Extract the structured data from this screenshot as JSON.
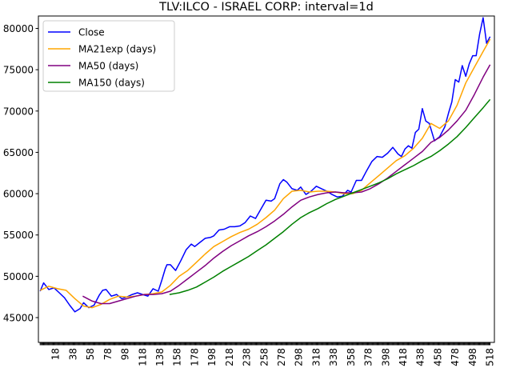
{
  "chart_data": {
    "type": "line",
    "title": "TLV:ILCO - ISRAEL CORP: interval=1d",
    "xlabel": "",
    "ylabel": "",
    "xlim": [
      -2,
      523
    ],
    "ylim": [
      42000,
      81500
    ],
    "yticks": [
      45000,
      50000,
      55000,
      60000,
      65000,
      70000,
      75000,
      80000
    ],
    "ytick_labels": [
      "45000",
      "50000",
      "55000",
      "60000",
      "65000",
      "70000",
      "75000",
      "80000"
    ],
    "xticks": [
      18,
      38,
      58,
      78,
      98,
      118,
      138,
      158,
      178,
      198,
      218,
      238,
      258,
      278,
      298,
      318,
      338,
      358,
      378,
      398,
      418,
      438,
      458,
      478,
      498,
      518
    ],
    "xtick_labels": [
      "18",
      "38",
      "58",
      "78",
      "98",
      "118",
      "138",
      "158",
      "178",
      "198",
      "218",
      "238",
      "258",
      "278",
      "298",
      "318",
      "338",
      "358",
      "378",
      "398",
      "418",
      "438",
      "458",
      "478",
      "498",
      "518"
    ],
    "grid": false,
    "legend": {
      "position": "upper-left"
    },
    "series": [
      {
        "name": "Close",
        "color": "#0000ff",
        "x": [
          0,
          4,
          10,
          16,
          22,
          28,
          34,
          40,
          46,
          50,
          56,
          62,
          68,
          72,
          76,
          82,
          88,
          94,
          100,
          106,
          112,
          118,
          124,
          130,
          136,
          140,
          144,
          146,
          150,
          156,
          162,
          168,
          174,
          178,
          184,
          190,
          196,
          200,
          206,
          212,
          218,
          224,
          230,
          236,
          242,
          248,
          254,
          260,
          266,
          270,
          276,
          280,
          284,
          290,
          296,
          300,
          306,
          312,
          318,
          324,
          330,
          336,
          342,
          348,
          354,
          358,
          364,
          370,
          376,
          382,
          388,
          394,
          400,
          406,
          412,
          416,
          420,
          424,
          428,
          432,
          436,
          440,
          444,
          448,
          454,
          460,
          466,
          470,
          474,
          478,
          482,
          486,
          490,
          494,
          498,
          502,
          506,
          510,
          514,
          518
        ],
        "y": [
          48200,
          49200,
          48400,
          48600,
          48000,
          47400,
          46500,
          45700,
          46100,
          46800,
          46200,
          46500,
          47700,
          48300,
          48400,
          47600,
          47800,
          47300,
          47500,
          47800,
          48000,
          47800,
          47600,
          48500,
          48200,
          49500,
          50900,
          51400,
          51400,
          50700,
          51900,
          53200,
          53900,
          53600,
          54100,
          54600,
          54700,
          54900,
          55600,
          55700,
          56000,
          56000,
          56100,
          56500,
          57300,
          57000,
          58100,
          59200,
          59100,
          59400,
          61200,
          61700,
          61400,
          60600,
          60400,
          60800,
          59900,
          60300,
          60900,
          60600,
          60300,
          59900,
          59600,
          59700,
          60400,
          60200,
          61600,
          61600,
          62800,
          63900,
          64500,
          64400,
          64900,
          65600,
          64800,
          64500,
          65400,
          65800,
          65500,
          67400,
          67800,
          70300,
          68800,
          68500,
          66400,
          66900,
          68100,
          69700,
          71100,
          73800,
          73500,
          75500,
          74200,
          75700,
          76700,
          76700,
          79300,
          81300,
          78200,
          79000
        ]
      },
      {
        "name": "MA21exp (days)",
        "color": "#ffa500",
        "x": [
          0,
          10,
          20,
          30,
          40,
          50,
          60,
          70,
          80,
          90,
          100,
          110,
          120,
          130,
          140,
          150,
          160,
          170,
          180,
          190,
          200,
          210,
          220,
          230,
          240,
          250,
          260,
          270,
          280,
          290,
          300,
          310,
          320,
          330,
          340,
          350,
          360,
          370,
          380,
          390,
          400,
          410,
          420,
          430,
          440,
          450,
          460,
          470,
          480,
          490,
          500,
          510,
          518
        ],
        "y": [
          48300,
          48800,
          48500,
          48300,
          47300,
          46400,
          46200,
          46600,
          47200,
          47600,
          47500,
          47600,
          47800,
          47900,
          48100,
          48900,
          50000,
          50700,
          51700,
          52700,
          53600,
          54200,
          54800,
          55300,
          55700,
          56300,
          57100,
          58000,
          59400,
          60300,
          60400,
          60200,
          60300,
          60300,
          60200,
          60000,
          60000,
          60400,
          61300,
          62200,
          63100,
          64000,
          64600,
          65500,
          66700,
          68500,
          67900,
          68800,
          70700,
          73400,
          75300,
          77200,
          78700
        ]
      },
      {
        "name": "MA50 (days)",
        "color": "#800080",
        "x": [
          49,
          60,
          70,
          80,
          90,
          100,
          110,
          120,
          130,
          140,
          150,
          160,
          170,
          180,
          190,
          200,
          210,
          220,
          230,
          240,
          250,
          260,
          270,
          280,
          290,
          300,
          310,
          320,
          330,
          340,
          350,
          360,
          370,
          380,
          390,
          400,
          410,
          420,
          430,
          440,
          450,
          460,
          470,
          480,
          490,
          500,
          510,
          518
        ],
        "y": [
          47600,
          47000,
          46700,
          46700,
          47000,
          47300,
          47600,
          47800,
          47800,
          47900,
          48200,
          48900,
          49700,
          50500,
          51300,
          52200,
          53000,
          53700,
          54300,
          54900,
          55400,
          56000,
          56700,
          57500,
          58400,
          59200,
          59600,
          59900,
          60100,
          60200,
          60100,
          60100,
          60200,
          60600,
          61200,
          61900,
          62700,
          63500,
          64300,
          65100,
          66200,
          66800,
          67700,
          68800,
          70100,
          72000,
          74100,
          75600
        ]
      },
      {
        "name": "MA150 (days)",
        "color": "#008000",
        "x": [
          149,
          160,
          170,
          180,
          190,
          200,
          210,
          220,
          230,
          240,
          250,
          260,
          270,
          280,
          290,
          300,
          310,
          320,
          330,
          340,
          350,
          360,
          370,
          380,
          390,
          400,
          410,
          420,
          430,
          440,
          450,
          460,
          470,
          480,
          490,
          500,
          510,
          518
        ],
        "y": [
          47800,
          48000,
          48300,
          48700,
          49300,
          49900,
          50600,
          51200,
          51800,
          52400,
          53100,
          53800,
          54600,
          55400,
          56300,
          57100,
          57700,
          58200,
          58800,
          59300,
          59700,
          60100,
          60500,
          60900,
          61300,
          61800,
          62400,
          62900,
          63400,
          64000,
          64500,
          65200,
          66000,
          66900,
          68000,
          69200,
          70400,
          71400
        ]
      }
    ]
  }
}
